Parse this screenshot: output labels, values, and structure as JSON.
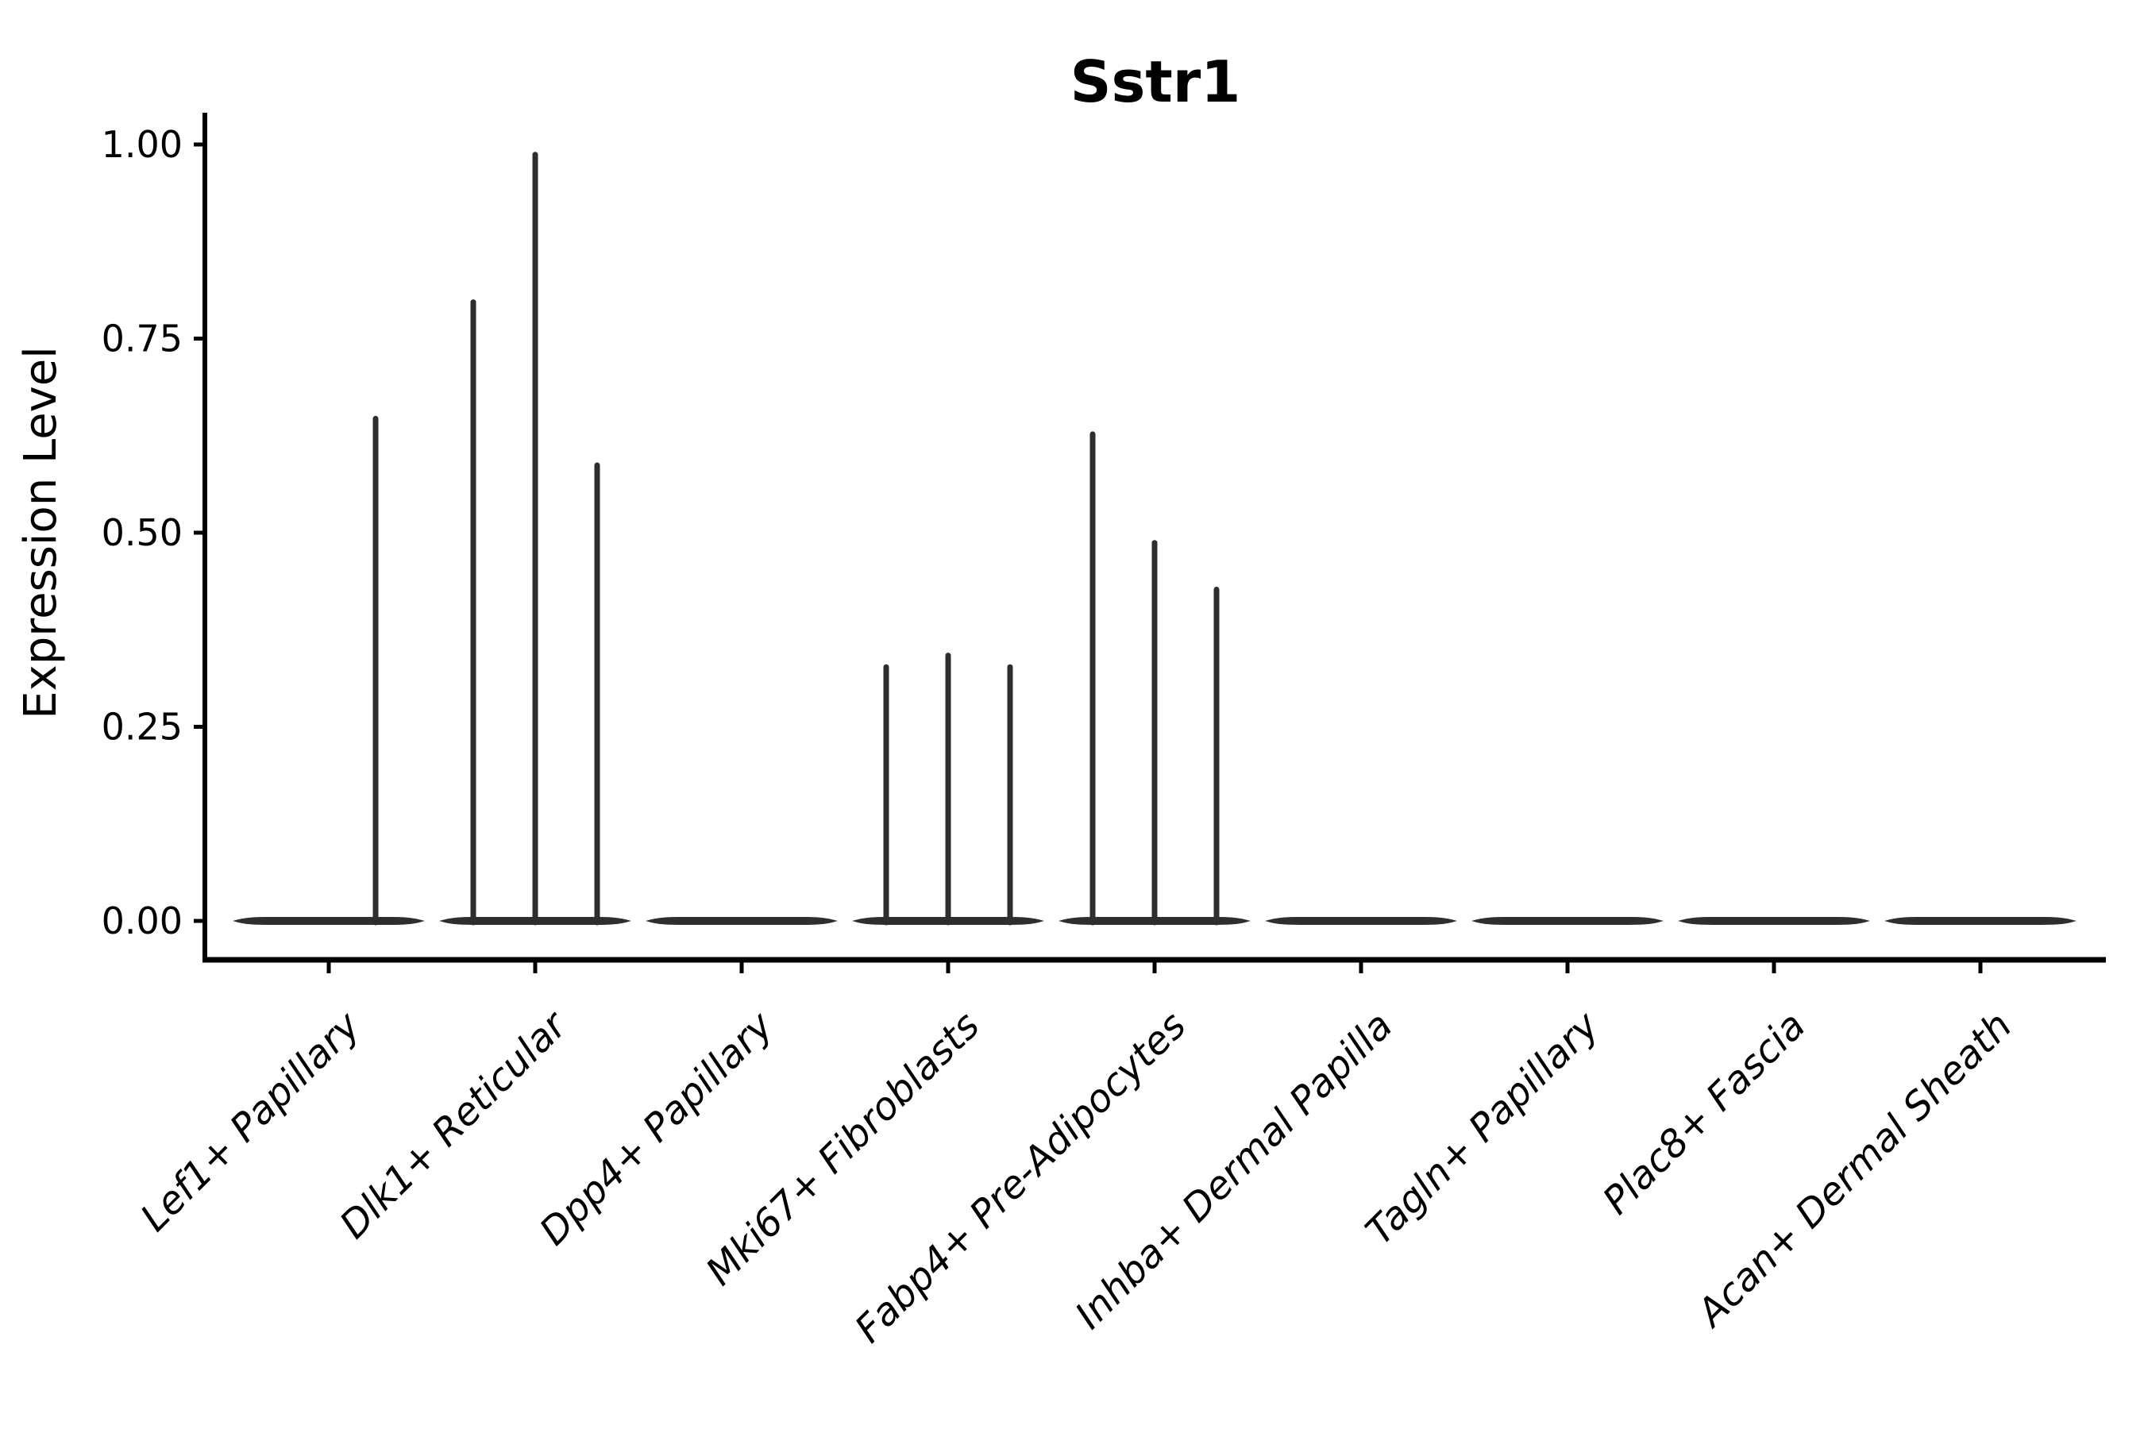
{
  "figure": {
    "background_color": "#ffffff",
    "axis_color": "#000000",
    "violin_color": "#2e2e2e"
  },
  "chart_data": {
    "type": "violin",
    "title": "Sstr1",
    "xlabel": "",
    "ylabel": "Expression Level",
    "grid": false,
    "legend": null,
    "ylim": [
      -0.05,
      1.07
    ],
    "yticks": [
      0.0,
      0.25,
      0.5,
      0.75,
      1.0
    ],
    "ytick_labels": [
      "0.00",
      "0.25",
      "0.50",
      "0.75",
      "1.00"
    ],
    "x_tick_rotation": 45,
    "violin_width": 0.915,
    "categories": [
      "Lef1+ Papillary",
      "Dlk1+ Reticular",
      "Dpp4+ Papillary",
      "Mki67+ Fibroblasts",
      "Fabp4+ Pre-Adipocytes",
      "Inhba+ Dermal Papilla",
      "Tagln+ Papillary",
      "Plac8+ Fascia",
      "Acan+ Dermal Sheath"
    ],
    "violins": [
      {
        "category": "Lef1+ Papillary",
        "baseline": 0.0,
        "spikes": [
          {
            "offset": 0.227,
            "value": 0.65
          }
        ]
      },
      {
        "category": "Dlk1+ Reticular",
        "baseline": 0.0,
        "spikes": [
          {
            "offset": -0.3,
            "value": 0.8
          },
          {
            "offset": 0.0,
            "value": 0.99
          },
          {
            "offset": 0.3,
            "value": 0.59
          }
        ]
      },
      {
        "category": "Dpp4+ Papillary",
        "baseline": 0.0,
        "spikes": []
      },
      {
        "category": "Mki67+ Fibroblasts",
        "baseline": 0.0,
        "spikes": [
          {
            "offset": -0.3,
            "value": 0.33
          },
          {
            "offset": 0.0,
            "value": 0.345
          },
          {
            "offset": 0.3,
            "value": 0.33
          }
        ]
      },
      {
        "category": "Fabp4+ Pre-Adipocytes",
        "baseline": 0.0,
        "spikes": [
          {
            "offset": -0.3,
            "value": 0.63
          },
          {
            "offset": 0.0,
            "value": 0.49
          },
          {
            "offset": 0.3,
            "value": 0.43
          }
        ]
      },
      {
        "category": "Inhba+ Dermal Papilla",
        "baseline": 0.0,
        "spikes": []
      },
      {
        "category": "Tagln+ Papillary",
        "baseline": 0.0,
        "spikes": []
      },
      {
        "category": "Plac8+ Fascia",
        "baseline": 0.0,
        "spikes": []
      },
      {
        "category": "Acan+ Dermal Sheath",
        "baseline": 0.0,
        "spikes": []
      }
    ]
  }
}
